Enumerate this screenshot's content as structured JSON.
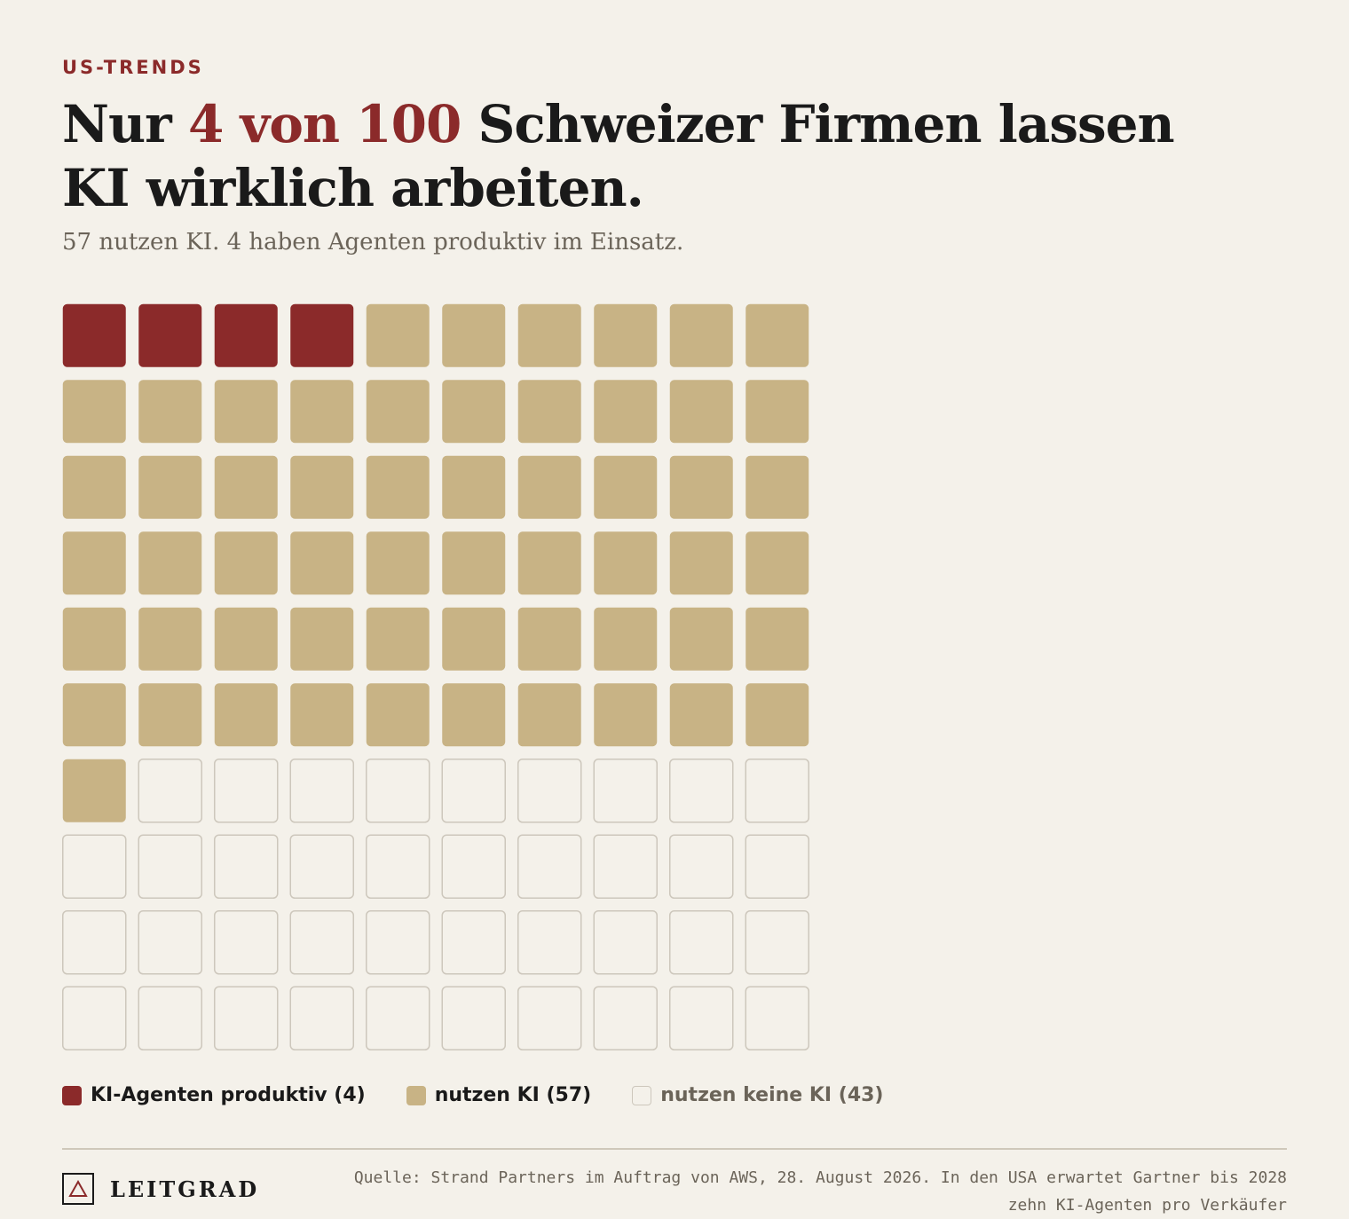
{
  "kicker": "US-TRENDS",
  "headline": {
    "pre": "Nur ",
    "highlight": "4 von 100",
    "post": " Schweizer Firmen lassen KI wirklich arbeiten."
  },
  "subtitle": "57 nutzen KI. 4 haben Agenten produktiv im Einsatz.",
  "colors": {
    "agents": "#8b2a2a",
    "uses_ai": "#c8b385",
    "no_ai_border": "#cdc7bc",
    "no_ai_fill": "#f4f1ea"
  },
  "chart_data": {
    "type": "waffle",
    "grid": {
      "rows": 10,
      "cols": 10
    },
    "total": 100,
    "categories": [
      {
        "name": "KI-Agenten produktiv",
        "value": 4
      },
      {
        "name": "nutzen KI",
        "value": 57
      },
      {
        "name": "nutzen keine KI",
        "value": 43
      }
    ],
    "legend": [
      {
        "label": "KI-Agenten produktiv (4)"
      },
      {
        "label": "nutzen KI (57)"
      },
      {
        "label": "nutzen keine KI (43)"
      }
    ]
  },
  "footer": {
    "brand": "LEITGRAD",
    "source": "Quelle: Strand Partners im Auftrag von AWS, 28. August 2026. In den USA erwartet Gartner bis 2028 zehn KI-Agenten pro Verkäufer"
  }
}
